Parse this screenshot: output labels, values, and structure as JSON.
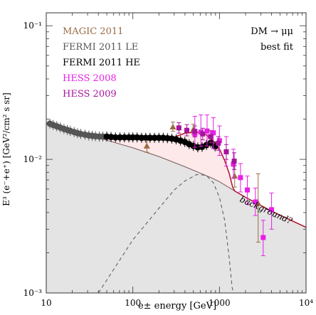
{
  "chart_data": {
    "type": "scatter",
    "xlabel": "e± energy [GeV]",
    "ylabel": "E³ (e⁻+e⁺) [GeV²/cm² s sr]",
    "xscale": "log",
    "yscale": "log",
    "xlim": [
      10,
      10000
    ],
    "ylim": [
      0.001,
      0.125
    ],
    "x_ticks": [
      {
        "value": 10,
        "label": "10"
      },
      {
        "value": 100,
        "label": "100"
      },
      {
        "value": 1000,
        "label": "1000"
      },
      {
        "value": 10000,
        "label": "10⁴"
      }
    ],
    "y_ticks": [
      {
        "value": 0.001,
        "label": "10⁻³"
      },
      {
        "value": 0.01,
        "label": "10⁻²"
      },
      {
        "value": 0.1,
        "label": "10⁻¹"
      }
    ],
    "legend_left": [
      "MAGIC 2011",
      "FERMI 2011 LE",
      "FERMI 2011 HE",
      "HESS 2008",
      "HESS 2009"
    ],
    "legend_right": [
      "DM → μμ",
      "best fit"
    ],
    "annotation": "background?",
    "colors": {
      "magic": "#9b6b43",
      "fermi_le": "#555555",
      "fermi_he": "#000000",
      "hess2008": "#e81ee8",
      "hess2009": "#a6139c",
      "total_fit": "#b0102a",
      "signal_fill": "#fde8ea",
      "background_fill": "#e4e4e4"
    },
    "series": [
      {
        "name": "FERMI 2011 LE",
        "points": [
          {
            "x": 11,
            "y": 0.0185
          },
          {
            "x": 12,
            "y": 0.0181
          },
          {
            "x": 13.2,
            "y": 0.0177
          },
          {
            "x": 14.5,
            "y": 0.0173
          },
          {
            "x": 16,
            "y": 0.0169
          },
          {
            "x": 17.5,
            "y": 0.0166
          },
          {
            "x": 19,
            "y": 0.0163
          },
          {
            "x": 21,
            "y": 0.016
          },
          {
            "x": 23,
            "y": 0.0157
          },
          {
            "x": 25,
            "y": 0.0155
          },
          {
            "x": 28,
            "y": 0.0153
          },
          {
            "x": 31,
            "y": 0.0151
          },
          {
            "x": 34,
            "y": 0.015
          },
          {
            "x": 37,
            "y": 0.0149
          },
          {
            "x": 41,
            "y": 0.0148
          },
          {
            "x": 45,
            "y": 0.0148
          }
        ]
      },
      {
        "name": "FERMI 2011 HE",
        "points": [
          {
            "x": 50,
            "y": 0.0148
          },
          {
            "x": 56,
            "y": 0.0147
          },
          {
            "x": 63,
            "y": 0.0146
          },
          {
            "x": 71,
            "y": 0.0146
          },
          {
            "x": 80,
            "y": 0.0146
          },
          {
            "x": 90,
            "y": 0.0146
          },
          {
            "x": 100,
            "y": 0.0146
          },
          {
            "x": 112,
            "y": 0.0146
          },
          {
            "x": 126,
            "y": 0.0145
          },
          {
            "x": 141,
            "y": 0.0145
          },
          {
            "x": 158,
            "y": 0.0145
          },
          {
            "x": 178,
            "y": 0.0145
          },
          {
            "x": 200,
            "y": 0.0145
          },
          {
            "x": 224,
            "y": 0.0145
          },
          {
            "x": 251,
            "y": 0.0144
          },
          {
            "x": 282,
            "y": 0.0143
          },
          {
            "x": 316,
            "y": 0.0141
          },
          {
            "x": 355,
            "y": 0.0138
          },
          {
            "x": 398,
            "y": 0.0135
          },
          {
            "x": 447,
            "y": 0.013
          },
          {
            "x": 501,
            "y": 0.0126
          },
          {
            "x": 562,
            "y": 0.0123
          },
          {
            "x": 631,
            "y": 0.0124
          },
          {
            "x": 708,
            "y": 0.0128
          },
          {
            "x": 794,
            "y": 0.0133
          },
          {
            "x": 890,
            "y": 0.0125
          }
        ]
      },
      {
        "name": "MAGIC 2011",
        "points": [
          {
            "x": 145,
            "y": 0.0126,
            "lo": 0.0113,
            "hi": 0.0138
          },
          {
            "x": 290,
            "y": 0.0175,
            "lo": 0.0162,
            "hi": 0.019
          },
          {
            "x": 500,
            "y": 0.0168,
            "lo": 0.0154,
            "hi": 0.0183
          },
          {
            "x": 1500,
            "y": 0.0075,
            "lo": 0.0062,
            "hi": 0.009
          },
          {
            "x": 2800,
            "y": 0.0047,
            "lo": 0.0024,
            "hi": 0.0078
          }
        ]
      },
      {
        "name": "HESS 2008",
        "points": [
          {
            "x": 520,
            "y": 0.0155,
            "lo": 0.0123,
            "hi": 0.021
          },
          {
            "x": 610,
            "y": 0.016,
            "lo": 0.0125,
            "hi": 0.0215
          },
          {
            "x": 720,
            "y": 0.0163,
            "lo": 0.0126,
            "hi": 0.0215
          },
          {
            "x": 850,
            "y": 0.0158,
            "lo": 0.012,
            "hi": 0.0205
          },
          {
            "x": 1000,
            "y": 0.0138,
            "lo": 0.0107,
            "hi": 0.0178
          },
          {
            "x": 1200,
            "y": 0.0114,
            "lo": 0.0089,
            "hi": 0.0148
          },
          {
            "x": 1450,
            "y": 0.0092,
            "lo": 0.0072,
            "hi": 0.0119
          },
          {
            "x": 1750,
            "y": 0.0073,
            "lo": 0.0057,
            "hi": 0.0093
          },
          {
            "x": 2100,
            "y": 0.0059,
            "lo": 0.0046,
            "hi": 0.0075
          },
          {
            "x": 2600,
            "y": 0.0048,
            "lo": 0.0038,
            "hi": 0.0061
          },
          {
            "x": 3200,
            "y": 0.0026,
            "lo": 0.0019,
            "hi": 0.0035
          },
          {
            "x": 4000,
            "y": 0.0042,
            "lo": 0.003,
            "hi": 0.0056
          }
        ]
      },
      {
        "name": "HESS 2009",
        "points": [
          {
            "x": 340,
            "y": 0.0172,
            "lo": 0.0157,
            "hi": 0.0188
          },
          {
            "x": 420,
            "y": 0.0165,
            "lo": 0.015,
            "hi": 0.0182
          },
          {
            "x": 520,
            "y": 0.0162,
            "lo": 0.0147,
            "hi": 0.0178
          },
          {
            "x": 640,
            "y": 0.0155,
            "lo": 0.014,
            "hi": 0.0171
          },
          {
            "x": 790,
            "y": 0.0148,
            "lo": 0.0133,
            "hi": 0.0164
          },
          {
            "x": 970,
            "y": 0.0132,
            "lo": 0.0117,
            "hi": 0.0148
          },
          {
            "x": 1200,
            "y": 0.0114,
            "lo": 0.01,
            "hi": 0.0129
          },
          {
            "x": 1480,
            "y": 0.0097,
            "lo": 0.0084,
            "hi": 0.0112
          }
        ]
      }
    ],
    "curves": {
      "background": [
        {
          "x": 10,
          "y": 0.0185
        },
        {
          "x": 20,
          "y": 0.0163
        },
        {
          "x": 30,
          "y": 0.015
        },
        {
          "x": 50,
          "y": 0.0139
        },
        {
          "x": 100,
          "y": 0.0122
        },
        {
          "x": 200,
          "y": 0.0105
        },
        {
          "x": 400,
          "y": 0.0088
        },
        {
          "x": 800,
          "y": 0.0073
        },
        {
          "x": 1000,
          "y": 0.0068
        },
        {
          "x": 1500,
          "y": 0.0058
        },
        {
          "x": 2000,
          "y": 0.0052
        },
        {
          "x": 4000,
          "y": 0.0041
        },
        {
          "x": 10000,
          "y": 0.0031
        }
      ],
      "signal": [
        {
          "x": 40,
          "y": 0.001
        },
        {
          "x": 60,
          "y": 0.0015
        },
        {
          "x": 100,
          "y": 0.0025
        },
        {
          "x": 200,
          "y": 0.0043
        },
        {
          "x": 300,
          "y": 0.0059
        },
        {
          "x": 400,
          "y": 0.0069
        },
        {
          "x": 550,
          "y": 0.0077
        },
        {
          "x": 700,
          "y": 0.0076
        },
        {
          "x": 850,
          "y": 0.0067
        },
        {
          "x": 1000,
          "y": 0.0052
        },
        {
          "x": 1150,
          "y": 0.0035
        },
        {
          "x": 1300,
          "y": 0.0018
        },
        {
          "x": 1400,
          "y": 0.0011
        },
        {
          "x": 1450,
          "y": 0.001
        }
      ],
      "total": [
        {
          "x": 10,
          "y": 0.0186
        },
        {
          "x": 20,
          "y": 0.0165
        },
        {
          "x": 30,
          "y": 0.0153
        },
        {
          "x": 50,
          "y": 0.0145
        },
        {
          "x": 100,
          "y": 0.0147
        },
        {
          "x": 200,
          "y": 0.0148
        },
        {
          "x": 300,
          "y": 0.0147
        },
        {
          "x": 400,
          "y": 0.0157
        },
        {
          "x": 550,
          "y": 0.016
        },
        {
          "x": 700,
          "y": 0.0153
        },
        {
          "x": 850,
          "y": 0.0138
        },
        {
          "x": 1000,
          "y": 0.012
        },
        {
          "x": 1150,
          "y": 0.0098
        },
        {
          "x": 1300,
          "y": 0.0078
        },
        {
          "x": 1420,
          "y": 0.0062
        },
        {
          "x": 1500,
          "y": 0.0058
        },
        {
          "x": 2000,
          "y": 0.0052
        },
        {
          "x": 4000,
          "y": 0.0041
        },
        {
          "x": 10000,
          "y": 0.0031
        }
      ]
    }
  }
}
